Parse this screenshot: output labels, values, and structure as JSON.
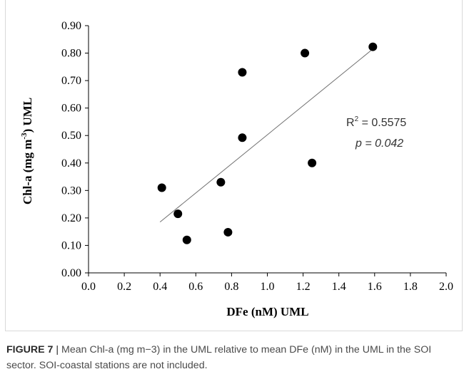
{
  "chart_data": {
    "type": "scatter",
    "xlabel": "DFe (nM) UML",
    "ylabel_parts": [
      "Chl-a (mg m",
      "-3",
      ") UML"
    ],
    "xlim": [
      0.0,
      2.0
    ],
    "ylim": [
      0.0,
      0.9
    ],
    "x_ticks": [
      "0.0",
      "0.2",
      "0.4",
      "0.6",
      "0.8",
      "1.0",
      "1.2",
      "1.4",
      "1.6",
      "1.8",
      "2.0"
    ],
    "y_ticks": [
      "0.00",
      "0.10",
      "0.20",
      "0.30",
      "0.40",
      "0.50",
      "0.60",
      "0.70",
      "0.80",
      "0.90"
    ],
    "grid": false,
    "points": [
      {
        "x": 0.41,
        "y": 0.31
      },
      {
        "x": 0.5,
        "y": 0.215
      },
      {
        "x": 0.55,
        "y": 0.12
      },
      {
        "x": 0.74,
        "y": 0.33
      },
      {
        "x": 0.78,
        "y": 0.148
      },
      {
        "x": 0.86,
        "y": 0.73
      },
      {
        "x": 0.86,
        "y": 0.492
      },
      {
        "x": 1.21,
        "y": 0.8
      },
      {
        "x": 1.25,
        "y": 0.4
      },
      {
        "x": 1.59,
        "y": 0.823
      }
    ],
    "trendline": {
      "x": [
        0.4,
        1.59
      ],
      "y": [
        0.185,
        0.815
      ]
    },
    "annotations": {
      "r2_prefix": "R",
      "r2_sup": "2",
      "r2_value": " = 0.5575",
      "p_prefix": "p",
      "p_value": " = 0.042"
    },
    "colors": {
      "marker": "#000000",
      "trendline": "#707070",
      "axis": "#000000"
    }
  },
  "caption": {
    "label": "FIGURE 7",
    "separator": " | ",
    "text": "Mean Chl-a (mg m−3) in the UML relative to mean DFe (nM) in the UML in the SOI sector. SOI-coastal stations are not included."
  }
}
